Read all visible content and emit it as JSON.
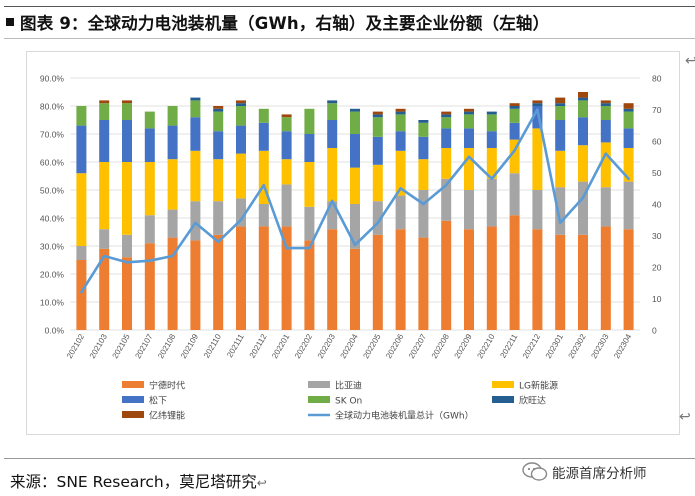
{
  "header": {
    "title": "图表 9：全球动力电池装机量（GWh，右轴）及主要企业份额（左轴）"
  },
  "footer": {
    "source": "来源：SNE Research，莫尼塔研究",
    "watermark": "能源首席分析师",
    "return_glyph": "↩"
  },
  "colors": {
    "catl": "#ED7D31",
    "byd": "#A5A5A5",
    "lg": "#FFC000",
    "panasonic": "#4472C4",
    "skon": "#70AD47",
    "sunwoda": "#255E91",
    "eve": "#9E480E",
    "total_line": "#5B9BD5"
  },
  "chart_data": {
    "type": "bar",
    "stacked": true,
    "categories": [
      "202102",
      "202103",
      "202105",
      "202107",
      "202108",
      "202109",
      "202110",
      "202111",
      "202112",
      "202201",
      "202202",
      "202203",
      "202204",
      "202205",
      "202206",
      "202207",
      "202208",
      "202209",
      "202210",
      "202211",
      "202212",
      "202301",
      "202302",
      "202303",
      "202304"
    ],
    "series": [
      {
        "key": "catl",
        "name": "宁德时代",
        "values": [
          25,
          29,
          26,
          31,
          33,
          32,
          34,
          37,
          37,
          37,
          32,
          36,
          29,
          34,
          36,
          33,
          39,
          36,
          37,
          41,
          36,
          34,
          34,
          37,
          36
        ]
      },
      {
        "key": "byd",
        "name": "比亚迪",
        "values": [
          5,
          7,
          8,
          10,
          10,
          14,
          12,
          10,
          8,
          15,
          12,
          10,
          16,
          12,
          12,
          17,
          15,
          14,
          17,
          15,
          14,
          17,
          19,
          14,
          17
        ]
      },
      {
        "key": "lg",
        "name": "LG新能源",
        "values": [
          26,
          24,
          26,
          19,
          18,
          18,
          15,
          16,
          19,
          9,
          16,
          19,
          13,
          13,
          16,
          11,
          11,
          15,
          11,
          12,
          22,
          13,
          13,
          16,
          12
        ]
      },
      {
        "key": "panasonic",
        "name": "松下",
        "values": [
          17,
          15,
          15,
          12,
          12,
          12,
          10,
          10,
          10,
          10,
          10,
          10,
          12,
          10,
          7,
          8,
          7,
          7,
          6,
          6,
          8,
          11,
          10,
          8,
          7
        ]
      },
      {
        "key": "skon",
        "name": "SK On",
        "values": [
          7,
          6,
          6,
          6,
          7,
          6,
          7,
          7,
          5,
          5,
          9,
          6,
          8,
          7,
          6,
          5,
          4,
          5,
          6,
          5,
          0,
          5,
          6,
          5,
          6
        ]
      },
      {
        "key": "sunwoda",
        "name": "欣旺达",
        "values": [
          0,
          0,
          0,
          0,
          0,
          1,
          1,
          1,
          0,
          0,
          0,
          1,
          1,
          1,
          1,
          1,
          1,
          1,
          1,
          1,
          1,
          1,
          1,
          1,
          1
        ]
      },
      {
        "key": "eve",
        "name": "亿纬锂能",
        "values": [
          0,
          1,
          1,
          0,
          0,
          0,
          1,
          1,
          0,
          1,
          0,
          0,
          0,
          1,
          1,
          0,
          1,
          1,
          0,
          1,
          1,
          2,
          2,
          1,
          2
        ]
      }
    ],
    "line": {
      "key": "total_line",
      "name": "全球动力电池装机量总计（GWh）",
      "axis": "right",
      "values": [
        12,
        23.5,
        21.5,
        22,
        23.5,
        34,
        28,
        35,
        46,
        26,
        26,
        41,
        27,
        34,
        45,
        40,
        46,
        55,
        48,
        57,
        70,
        34,
        42,
        56,
        48
      ]
    },
    "y_left": {
      "min": 0,
      "max": 90,
      "step": 10,
      "format": "percent",
      "ticks": [
        "0.0%",
        "10.0%",
        "20.0%",
        "30.0%",
        "40.0%",
        "50.0%",
        "60.0%",
        "70.0%",
        "80.0%",
        "90.0%"
      ]
    },
    "y_right": {
      "min": 0,
      "max": 80,
      "step": 10,
      "ticks": [
        "0",
        "10",
        "20",
        "30",
        "40",
        "50",
        "60",
        "70",
        "80"
      ]
    },
    "grid": true,
    "legend_position": "bottom"
  }
}
